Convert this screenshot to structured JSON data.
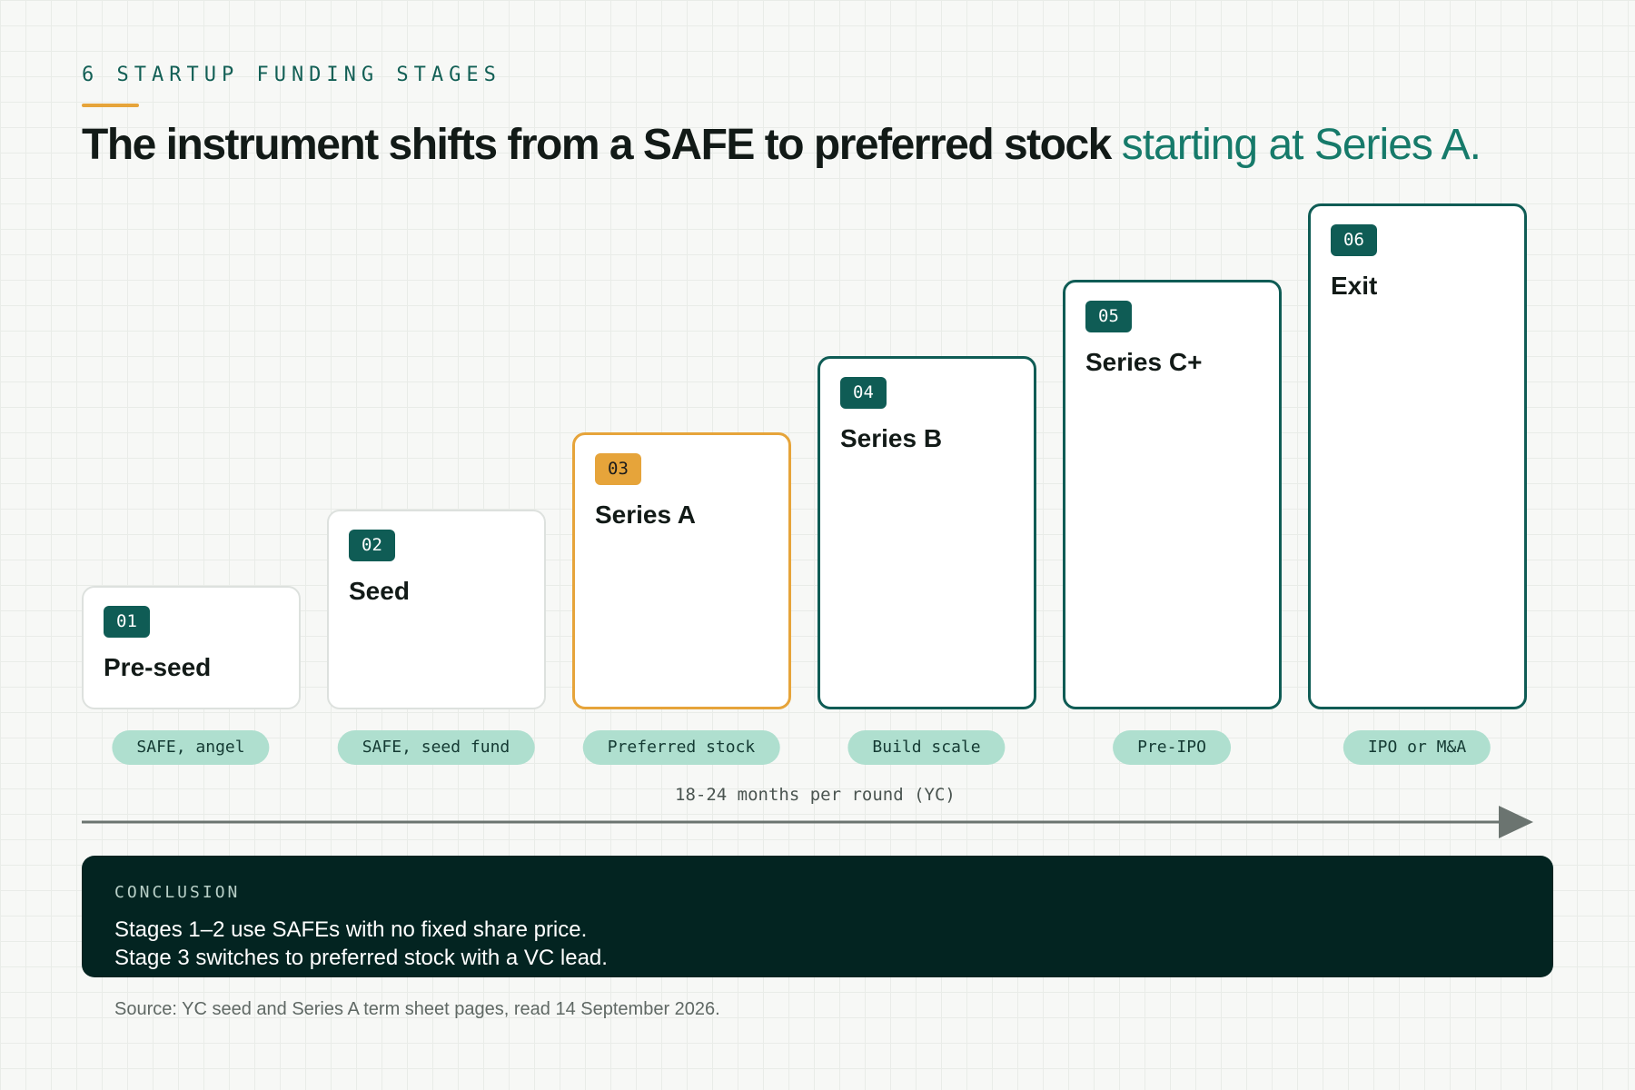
{
  "eyebrow": "6 STARTUP FUNDING STAGES",
  "headline": {
    "bold": "The instrument shifts from a SAFE to preferred stock",
    "accent": "starting at Series A."
  },
  "stages": [
    {
      "number": "01",
      "name": "Pre-seed",
      "instrument": "SAFE, angel"
    },
    {
      "number": "02",
      "name": "Seed",
      "instrument": "SAFE, seed fund"
    },
    {
      "number": "03",
      "name": "Series A",
      "instrument": "Preferred stock"
    },
    {
      "number": "04",
      "name": "Series B",
      "instrument": "Build scale"
    },
    {
      "number": "05",
      "name": "Series C+",
      "instrument": "Pre-IPO"
    },
    {
      "number": "06",
      "name": "Exit",
      "instrument": "IPO or M&A"
    }
  ],
  "timeline_label": "18-24 months per round (YC)",
  "conclusion": {
    "label": "CONCLUSION",
    "line1": "Stages 1–2 use SAFEs with no fixed share price.",
    "line2": "Stage 3 switches to preferred stock with a VC lead."
  },
  "source": "Source: YC seed and Series A term sheet pages, read 14 September 2026.",
  "colors": {
    "brand_teal": "#0f5c55",
    "accent_teal": "#167a6a",
    "highlight_amber": "#e6a43a",
    "pill_mint": "#afdfcf",
    "conclusion_bg": "#032421"
  }
}
